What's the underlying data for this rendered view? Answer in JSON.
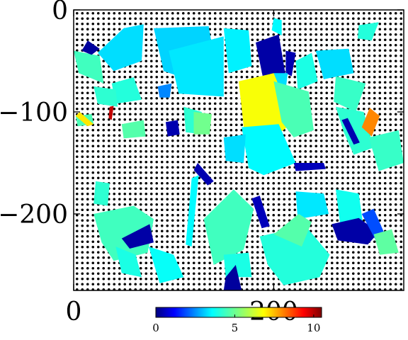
{
  "chart_data": {
    "type": "heatmap",
    "title": "",
    "xlabel": "",
    "ylabel": "",
    "xlim": [
      0,
      330
    ],
    "ylim": [
      -275,
      0
    ],
    "x_ticks": [
      {
        "value": 0,
        "label": "0"
      },
      {
        "value": 200,
        "label": "200"
      }
    ],
    "y_ticks": [
      {
        "value": 0,
        "label": "0"
      },
      {
        "value": -100,
        "label": "−100"
      },
      {
        "value": -200,
        "label": "−200"
      }
    ],
    "background": "dotted hatch",
    "colormap": "jet",
    "colorbar": {
      "range": [
        0,
        10.5
      ],
      "ticks": [
        {
          "value": 0,
          "label": "0"
        },
        {
          "value": 5,
          "label": "5"
        },
        {
          "value": 10,
          "label": "10"
        }
      ],
      "placement": "bottom"
    },
    "regions": [
      {
        "value": 3.6,
        "points": [
          [
            24,
            -42
          ],
          [
            50,
            -18
          ],
          [
            70,
            -14
          ],
          [
            68,
            -50
          ],
          [
            40,
            -60
          ]
        ]
      },
      {
        "value": 3.5,
        "points": [
          [
            80,
            -18
          ],
          [
            135,
            -16
          ],
          [
            140,
            -45
          ],
          [
            120,
            -70
          ],
          [
            90,
            -60
          ]
        ]
      },
      {
        "value": 3.7,
        "points": [
          [
            95,
            -40
          ],
          [
            150,
            -26
          ],
          [
            150,
            -85
          ],
          [
            105,
            -82
          ]
        ]
      },
      {
        "value": 4.6,
        "points": [
          [
            0,
            -40
          ],
          [
            26,
            -45
          ],
          [
            30,
            -72
          ],
          [
            5,
            -62
          ]
        ]
      },
      {
        "value": 0.3,
        "points": [
          [
            8,
            -40
          ],
          [
            14,
            -30
          ],
          [
            26,
            -38
          ],
          [
            18,
            -44
          ]
        ]
      },
      {
        "value": 4.3,
        "points": [
          [
            38,
            -72
          ],
          [
            60,
            -66
          ],
          [
            68,
            -88
          ],
          [
            42,
            -92
          ]
        ]
      },
      {
        "value": 4.4,
        "points": [
          [
            20,
            -75
          ],
          [
            42,
            -78
          ],
          [
            44,
            -95
          ],
          [
            24,
            -92
          ]
        ]
      },
      {
        "value": 3.8,
        "points": [
          [
            150,
            -18
          ],
          [
            175,
            -20
          ],
          [
            178,
            -55
          ],
          [
            155,
            -62
          ]
        ]
      },
      {
        "value": 3.9,
        "points": [
          [
            200,
            -8
          ],
          [
            208,
            -10
          ],
          [
            208,
            -25
          ],
          [
            198,
            -20
          ]
        ]
      },
      {
        "value": 0.4,
        "points": [
          [
            182,
            -32
          ],
          [
            205,
            -24
          ],
          [
            212,
            -65
          ],
          [
            190,
            -70
          ]
        ]
      },
      {
        "value": 0.5,
        "points": [
          [
            212,
            -40
          ],
          [
            222,
            -42
          ],
          [
            218,
            -65
          ],
          [
            212,
            -62
          ]
        ]
      },
      {
        "value": 3.6,
        "points": [
          [
            200,
            -62
          ],
          [
            214,
            -62
          ],
          [
            212,
            -78
          ],
          [
            204,
            -76
          ]
        ]
      },
      {
        "value": 4.2,
        "points": [
          [
            222,
            -50
          ],
          [
            238,
            -42
          ],
          [
            244,
            -70
          ],
          [
            224,
            -78
          ]
        ]
      },
      {
        "value": 3.6,
        "points": [
          [
            242,
            -40
          ],
          [
            275,
            -38
          ],
          [
            280,
            -62
          ],
          [
            250,
            -68
          ]
        ]
      },
      {
        "value": 4.5,
        "points": [
          [
            262,
            -65
          ],
          [
            292,
            -72
          ],
          [
            282,
            -100
          ],
          [
            260,
            -90
          ]
        ]
      },
      {
        "value": 4.3,
        "points": [
          [
            285,
            -15
          ],
          [
            305,
            -12
          ],
          [
            298,
            -30
          ],
          [
            284,
            -28
          ]
        ]
      },
      {
        "value": 6.5,
        "points": [
          [
            165,
            -70
          ],
          [
            200,
            -62
          ],
          [
            220,
            -110
          ],
          [
            200,
            -125
          ],
          [
            170,
            -115
          ]
        ]
      },
      {
        "value": 4.7,
        "points": [
          [
            200,
            -70
          ],
          [
            235,
            -80
          ],
          [
            240,
            -118
          ],
          [
            220,
            -125
          ],
          [
            208,
            -110
          ]
        ]
      },
      {
        "value": 3.9,
        "points": [
          [
            168,
            -115
          ],
          [
            205,
            -112
          ],
          [
            222,
            -150
          ],
          [
            190,
            -162
          ],
          [
            175,
            -155
          ]
        ]
      },
      {
        "value": 3.6,
        "points": [
          [
            150,
            -125
          ],
          [
            172,
            -122
          ],
          [
            170,
            -150
          ],
          [
            152,
            -148
          ]
        ]
      },
      {
        "value": 4.4,
        "points": [
          [
            262,
            -95
          ],
          [
            290,
            -100
          ],
          [
            300,
            -135
          ],
          [
            280,
            -142
          ],
          [
            270,
            -120
          ]
        ]
      },
      {
        "value": 0.5,
        "points": [
          [
            268,
            -108
          ],
          [
            274,
            -106
          ],
          [
            286,
            -130
          ],
          [
            280,
            -132
          ]
        ]
      },
      {
        "value": 7.8,
        "points": [
          [
            288,
            -115
          ],
          [
            296,
            -96
          ],
          [
            306,
            -104
          ],
          [
            298,
            -124
          ]
        ]
      },
      {
        "value": 4.5,
        "points": [
          [
            295,
            -125
          ],
          [
            325,
            -118
          ],
          [
            330,
            -150
          ],
          [
            305,
            -158
          ]
        ]
      },
      {
        "value": 0.5,
        "points": [
          [
            120,
            -157
          ],
          [
            124,
            -150
          ],
          [
            140,
            -168
          ],
          [
            134,
            -172
          ]
        ]
      },
      {
        "value": 0.6,
        "points": [
          [
            178,
            -185
          ],
          [
            186,
            -182
          ],
          [
            196,
            -212
          ],
          [
            188,
            -214
          ]
        ]
      },
      {
        "value": 0.6,
        "points": [
          [
            220,
            -150
          ],
          [
            250,
            -150
          ],
          [
            252,
            -156
          ],
          [
            222,
            -158
          ]
        ]
      },
      {
        "value": 3.7,
        "points": [
          [
            222,
            -178
          ],
          [
            250,
            -180
          ],
          [
            255,
            -200
          ],
          [
            224,
            -205
          ]
        ]
      },
      {
        "value": 4.1,
        "points": [
          [
            262,
            -176
          ],
          [
            285,
            -180
          ],
          [
            290,
            -215
          ],
          [
            268,
            -222
          ]
        ]
      },
      {
        "value": 0.4,
        "points": [
          [
            258,
            -210
          ],
          [
            285,
            -204
          ],
          [
            305,
            -218
          ],
          [
            294,
            -230
          ],
          [
            264,
            -226
          ]
        ]
      },
      {
        "value": 2.1,
        "points": [
          [
            288,
            -200
          ],
          [
            300,
            -195
          ],
          [
            312,
            -222
          ],
          [
            302,
            -226
          ]
        ]
      },
      {
        "value": 4.9,
        "points": [
          [
            300,
            -220
          ],
          [
            318,
            -215
          ],
          [
            325,
            -238
          ],
          [
            306,
            -240
          ]
        ]
      },
      {
        "value": 4.6,
        "points": [
          [
            20,
            -200
          ],
          [
            60,
            -192
          ],
          [
            80,
            -205
          ],
          [
            74,
            -238
          ],
          [
            40,
            -246
          ],
          [
            28,
            -228
          ]
        ]
      },
      {
        "value": 0.4,
        "points": [
          [
            48,
            -224
          ],
          [
            76,
            -210
          ],
          [
            80,
            -228
          ],
          [
            56,
            -234
          ]
        ]
      },
      {
        "value": 4.4,
        "points": [
          [
            22,
            -168
          ],
          [
            36,
            -170
          ],
          [
            34,
            -192
          ],
          [
            20,
            -190
          ]
        ]
      },
      {
        "value": 4.2,
        "points": [
          [
            42,
            -232
          ],
          [
            62,
            -240
          ],
          [
            68,
            -262
          ],
          [
            48,
            -258
          ]
        ]
      },
      {
        "value": 4.0,
        "points": [
          [
            75,
            -232
          ],
          [
            100,
            -240
          ],
          [
            110,
            -262
          ],
          [
            86,
            -268
          ]
        ]
      },
      {
        "value": 3.9,
        "points": [
          [
            118,
            -165
          ],
          [
            125,
            -162
          ],
          [
            118,
            -232
          ],
          [
            112,
            -230
          ]
        ]
      },
      {
        "value": 4.6,
        "points": [
          [
            130,
            -205
          ],
          [
            160,
            -176
          ],
          [
            180,
            -195
          ],
          [
            170,
            -235
          ],
          [
            140,
            -250
          ]
        ]
      },
      {
        "value": 4.2,
        "points": [
          [
            150,
            -240
          ],
          [
            175,
            -238
          ],
          [
            178,
            -262
          ],
          [
            152,
            -262
          ]
        ]
      },
      {
        "value": 0.3,
        "points": [
          [
            152,
            -262
          ],
          [
            162,
            -250
          ],
          [
            168,
            -275
          ],
          [
            150,
            -275
          ]
        ]
      },
      {
        "value": 4.3,
        "points": [
          [
            186,
            -222
          ],
          [
            232,
            -212
          ],
          [
            256,
            -240
          ],
          [
            246,
            -262
          ],
          [
            210,
            -270
          ],
          [
            194,
            -250
          ]
        ]
      },
      {
        "value": 4.8,
        "points": [
          [
            200,
            -220
          ],
          [
            225,
            -200
          ],
          [
            238,
            -208
          ],
          [
            228,
            -232
          ]
        ]
      },
      {
        "value": 4.7,
        "points": [
          [
            2,
            -104
          ],
          [
            18,
            -102
          ],
          [
            20,
            -112
          ],
          [
            4,
            -114
          ]
        ]
      },
      {
        "value": 6.8,
        "points": [
          [
            2,
            -104
          ],
          [
            6,
            -100
          ],
          [
            20,
            -112
          ],
          [
            14,
            -114
          ]
        ]
      },
      {
        "value": 9.8,
        "points": [
          [
            36,
            -95
          ],
          [
            40,
            -94
          ],
          [
            38,
            -108
          ],
          [
            35,
            -106
          ]
        ]
      },
      {
        "value": 4.8,
        "points": [
          [
            48,
            -112
          ],
          [
            70,
            -108
          ],
          [
            72,
            -124
          ],
          [
            50,
            -126
          ]
        ]
      },
      {
        "value": 0.5,
        "points": [
          [
            92,
            -110
          ],
          [
            104,
            -108
          ],
          [
            106,
            -122
          ],
          [
            94,
            -124
          ]
        ]
      },
      {
        "value": 4.4,
        "points": [
          [
            110,
            -95
          ],
          [
            128,
            -100
          ],
          [
            130,
            -122
          ],
          [
            112,
            -120
          ]
        ]
      },
      {
        "value": 5.1,
        "points": [
          [
            120,
            -100
          ],
          [
            138,
            -102
          ],
          [
            136,
            -122
          ],
          [
            120,
            -122
          ]
        ]
      },
      {
        "value": 2.7,
        "points": [
          [
            84,
            -75
          ],
          [
            98,
            -72
          ],
          [
            96,
            -86
          ],
          [
            86,
            -86
          ]
        ]
      }
    ]
  }
}
